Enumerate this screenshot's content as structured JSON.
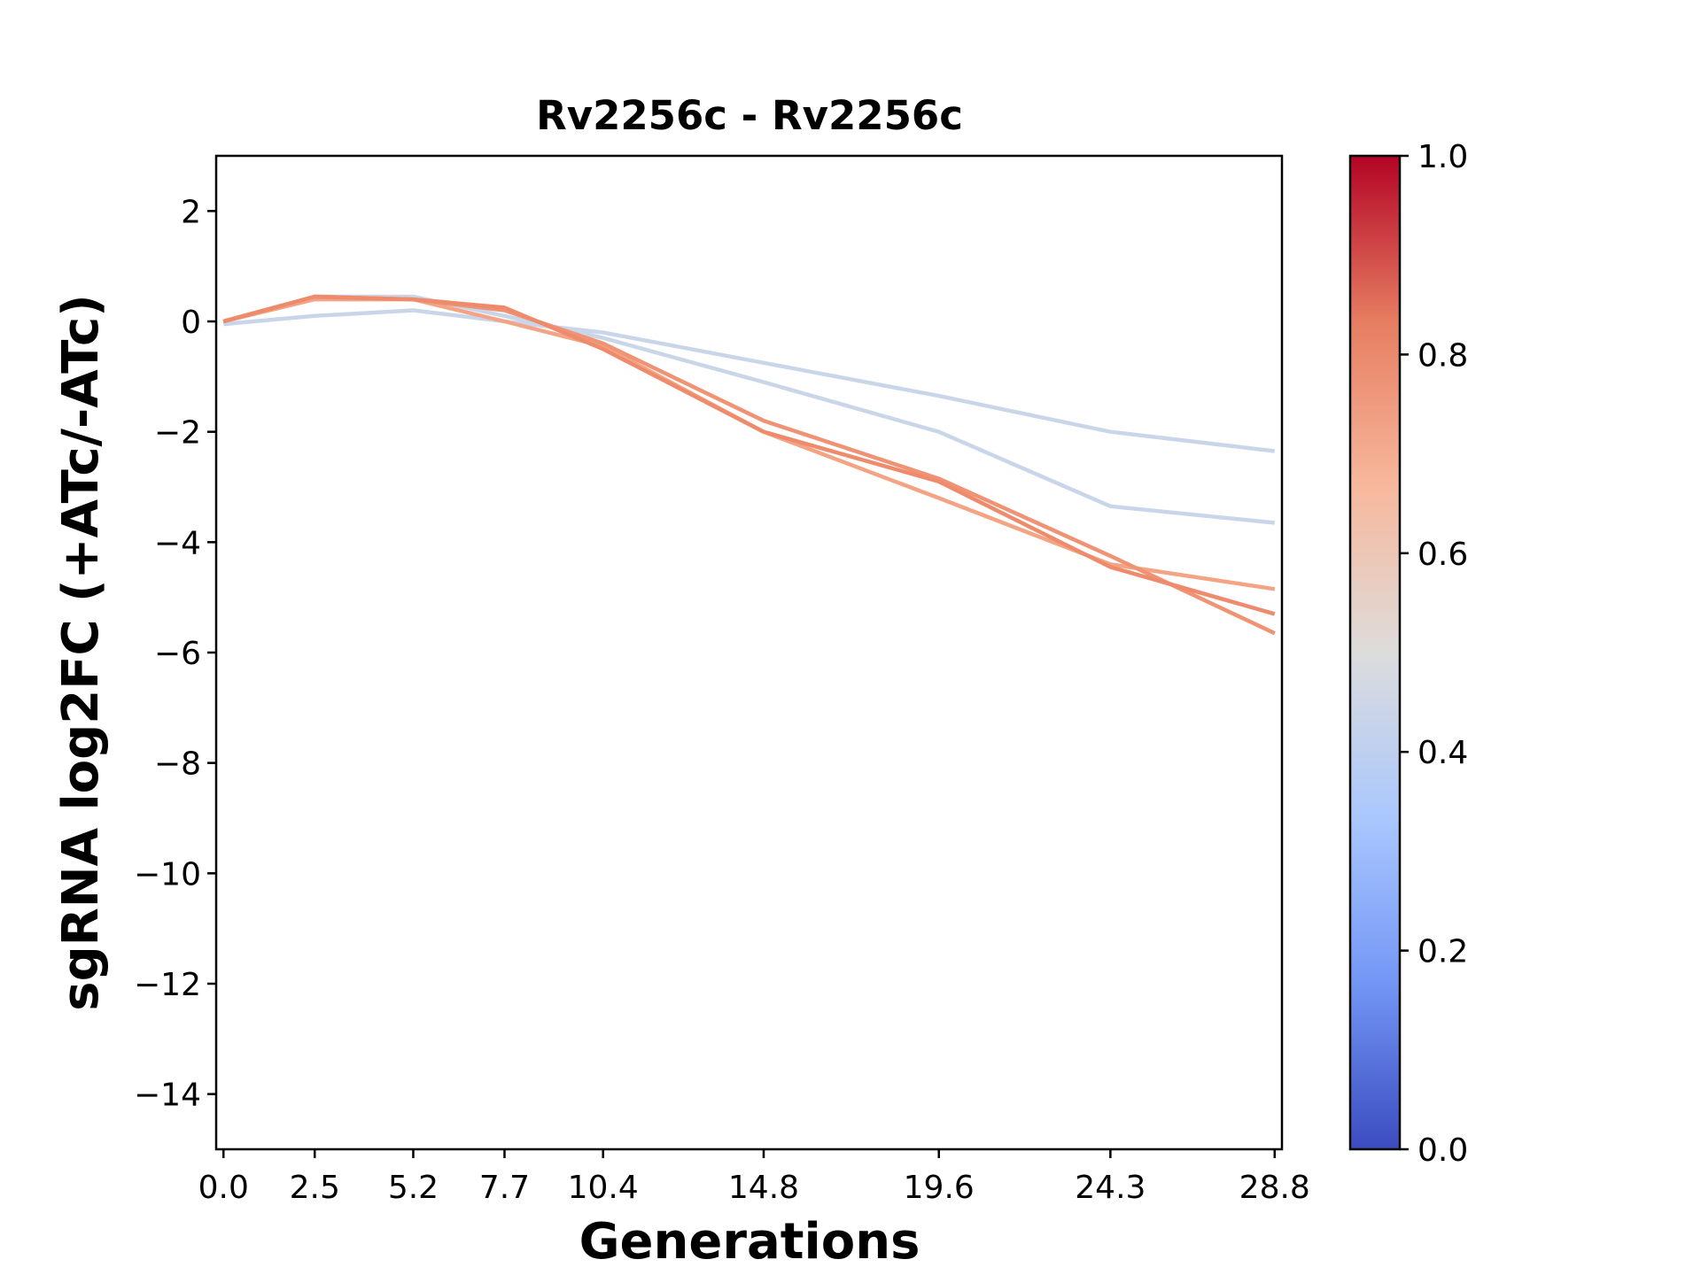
{
  "chart_data": {
    "type": "line",
    "title": "Rv2256c - Rv2256c",
    "xlabel": "Generations",
    "ylabel": "sgRNA log2FC (+ATc/-ATc)",
    "x": [
      0.0,
      2.5,
      5.2,
      7.7,
      10.4,
      14.8,
      19.6,
      24.3,
      28.8
    ],
    "x_tick_labels": [
      "0.0",
      "2.5",
      "5.2",
      "7.7",
      "10.4",
      "14.8",
      "19.6",
      "24.3",
      "28.8"
    ],
    "xlim": [
      -0.2,
      29.0
    ],
    "ylim": [
      -15,
      3
    ],
    "y_ticks": [
      2,
      0,
      -2,
      -4,
      -6,
      -8,
      -10,
      -12,
      -14
    ],
    "y_tick_labels": [
      "2",
      "0",
      "−2",
      "−4",
      "−6",
      "−8",
      "−10",
      "−12",
      "−14"
    ],
    "grid": false,
    "series": [
      {
        "color_value": 0.42,
        "color": "#c9d6ea",
        "values": [
          -0.05,
          0.1,
          0.2,
          0.0,
          -0.2,
          -0.75,
          -1.35,
          -2.0,
          -2.35
        ]
      },
      {
        "color_value": 0.42,
        "color": "#c9d6ea",
        "values": [
          0.0,
          0.45,
          0.45,
          0.1,
          -0.3,
          -1.1,
          -2.0,
          -3.35,
          -3.65
        ]
      },
      {
        "color_value": 0.72,
        "color": "#f4a484",
        "values": [
          0.0,
          0.4,
          0.4,
          0.0,
          -0.45,
          -2.0,
          -3.2,
          -4.4,
          -4.85
        ]
      },
      {
        "color_value": 0.76,
        "color": "#ef9374",
        "values": [
          0.0,
          0.45,
          0.4,
          0.2,
          -0.4,
          -1.8,
          -2.85,
          -4.25,
          -5.65
        ]
      },
      {
        "color_value": 0.78,
        "color": "#ee8b6c",
        "values": [
          0.0,
          0.45,
          0.4,
          0.25,
          -0.5,
          -2.0,
          -2.9,
          -4.45,
          -5.3
        ]
      }
    ],
    "colorbar": {
      "range": [
        0.0,
        1.0
      ],
      "ticks": [
        0.0,
        0.2,
        0.4,
        0.6,
        0.8,
        1.0
      ],
      "tick_labels": [
        "0.0",
        "0.2",
        "0.4",
        "0.6",
        "0.8",
        "1.0"
      ],
      "colormap": "coolwarm",
      "stops": [
        "#3b4cc0",
        "#7396f5",
        "#aac7fd",
        "#dddcdc",
        "#f7b89c",
        "#e67d61",
        "#b40426"
      ]
    }
  }
}
